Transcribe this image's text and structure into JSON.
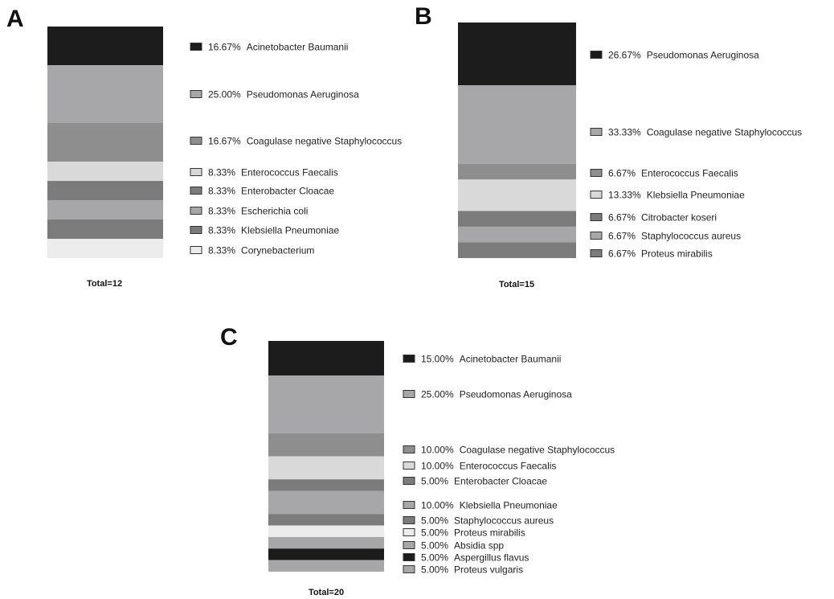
{
  "colors": {
    "black": "#1c1c1c",
    "dark_gray": "#7b7b7b",
    "mid_gray": "#8e8e8e",
    "light_gray": "#a7a7a9",
    "pale": "#d9d9d9",
    "very_pale": "#ececec",
    "outline": "#333333"
  },
  "chart_data": [
    {
      "type": "bar",
      "stacked": true,
      "panel": "A",
      "total_label": "Total=12",
      "segments": [
        {
          "label": "Acinetobacter Baumanii",
          "percent_label": "16.67%",
          "value": 16.67,
          "color": "#1c1c1c"
        },
        {
          "label": "Pseudomonas Aeruginosa",
          "percent_label": "25.00%",
          "value": 25.0,
          "color": "#a7a7a9"
        },
        {
          "label": "Coagulase negative Staphylococcus",
          "percent_label": "16.67%",
          "value": 16.67,
          "color": "#8e8e8e"
        },
        {
          "label": "Enterococcus Faecalis",
          "percent_label": "8.33%",
          "value": 8.33,
          "color": "#d9d9d9"
        },
        {
          "label": "Enterobacter Cloacae",
          "percent_label": "8.33%",
          "value": 8.33,
          "color": "#7b7b7b"
        },
        {
          "label": "Escherichia coli",
          "percent_label": "8.33%",
          "value": 8.33,
          "color": "#a7a7a9"
        },
        {
          "label": "Klebsiella Pneumoniae",
          "percent_label": "8.33%",
          "value": 8.33,
          "color": "#7b7b7b"
        },
        {
          "label": "Corynebacterium",
          "percent_label": "8.33%",
          "value": 8.33,
          "color": "#ececec"
        }
      ]
    },
    {
      "type": "bar",
      "stacked": true,
      "panel": "B",
      "total_label": "Total=15",
      "segments": [
        {
          "label": "Pseudomonas Aeruginosa",
          "percent_label": "26.67%",
          "value": 26.67,
          "color": "#1c1c1c"
        },
        {
          "label": "Coagulase negative Staphylococcus",
          "percent_label": "33.33%",
          "value": 33.33,
          "color": "#a7a7a9"
        },
        {
          "label": "Enterococcus Faecalis",
          "percent_label": "6.67%",
          "value": 6.67,
          "color": "#8e8e8e"
        },
        {
          "label": "Klebsiella Pneumoniae",
          "percent_label": "13.33%",
          "value": 13.33,
          "color": "#d9d9d9"
        },
        {
          "label": "Citrobacter koseri",
          "percent_label": "6.67%",
          "value": 6.67,
          "color": "#7b7b7b"
        },
        {
          "label": "Staphylococcus aureus",
          "percent_label": "6.67%",
          "value": 6.67,
          "color": "#a7a7a9"
        },
        {
          "label": "Proteus mirabilis",
          "percent_label": "6.67%",
          "value": 6.67,
          "color": "#7b7b7b"
        }
      ]
    },
    {
      "type": "bar",
      "stacked": true,
      "panel": "C",
      "total_label": "Total=20",
      "segments": [
        {
          "label": "Acinetobacter Baumanii",
          "percent_label": "15.00%",
          "value": 15.0,
          "color": "#1c1c1c"
        },
        {
          "label": "Pseudomonas Aeruginosa",
          "percent_label": "25.00%",
          "value": 25.0,
          "color": "#a7a7a9"
        },
        {
          "label": "Coagulase negative Staphylococcus",
          "percent_label": "10.00%",
          "value": 10.0,
          "color": "#8e8e8e"
        },
        {
          "label": "Enterococcus Faecalis",
          "percent_label": "10.00%",
          "value": 10.0,
          "color": "#d9d9d9"
        },
        {
          "label": "Enterobacter Cloacae",
          "percent_label": "5.00%",
          "value": 5.0,
          "color": "#7b7b7b"
        },
        {
          "label": "Klebsiella Pneumoniae",
          "percent_label": "10.00%",
          "value": 10.0,
          "color": "#a7a7a9"
        },
        {
          "label": "Staphylococcus aureus",
          "percent_label": "5.00%",
          "value": 5.0,
          "color": "#7b7b7b"
        },
        {
          "label": "Proteus mirabilis",
          "percent_label": "5.00%",
          "value": 5.0,
          "color": "#ececec"
        },
        {
          "label": "Absidia spp",
          "percent_label": "5.00%",
          "value": 5.0,
          "color": "#a7a7a9"
        },
        {
          "label": "Aspergillus flavus",
          "percent_label": "5.00%",
          "value": 5.0,
          "color": "#1c1c1c"
        },
        {
          "label": "Proteus vulgaris",
          "percent_label": "5.00%",
          "value": 5.0,
          "color": "#a7a7a9"
        }
      ]
    }
  ]
}
